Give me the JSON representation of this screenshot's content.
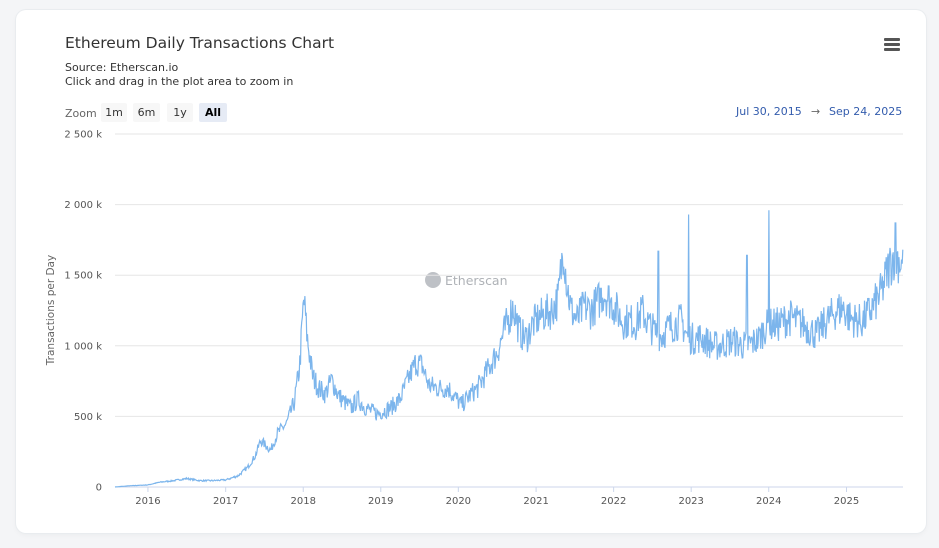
{
  "chart_data": {
    "type": "line",
    "title": "Ethereum Daily Transactions Chart",
    "subtitle": [
      "Source: Etherscan.io",
      "Click and drag in the plot area to zoom in"
    ],
    "ylabel": "Transactions per Day",
    "xlabel": "",
    "ylim": [
      0,
      2500000
    ],
    "xlim": [
      "2015-07-30",
      "2025-09-24"
    ],
    "y_ticks": [
      {
        "value": 0,
        "label": "0"
      },
      {
        "value": 500000,
        "label": "500 k"
      },
      {
        "value": 1000000,
        "label": "1 000 k"
      },
      {
        "value": 1500000,
        "label": "1 500 k"
      },
      {
        "value": 2000000,
        "label": "2 000 k"
      },
      {
        "value": 2500000,
        "label": "2 500 k"
      }
    ],
    "x_ticks": [
      {
        "value": "2016-01-01",
        "label": "2016"
      },
      {
        "value": "2017-01-01",
        "label": "2017"
      },
      {
        "value": "2018-01-01",
        "label": "2018"
      },
      {
        "value": "2019-01-01",
        "label": "2019"
      },
      {
        "value": "2020-01-01",
        "label": "2020"
      },
      {
        "value": "2021-01-01",
        "label": "2021"
      },
      {
        "value": "2022-01-01",
        "label": "2022"
      },
      {
        "value": "2023-01-01",
        "label": "2023"
      },
      {
        "value": "2024-01-01",
        "label": "2024"
      },
      {
        "value": "2025-01-01",
        "label": "2025"
      }
    ],
    "grid": true,
    "legend": "none",
    "series": [
      {
        "color": "#7cb5ec",
        "points": [
          [
            "2015-07-30",
            0
          ],
          [
            "2015-10-01",
            8000
          ],
          [
            "2016-01-01",
            15000
          ],
          [
            "2016-03-01",
            35000
          ],
          [
            "2016-05-01",
            45000
          ],
          [
            "2016-07-01",
            60000
          ],
          [
            "2016-09-01",
            45000
          ],
          [
            "2016-11-01",
            45000
          ],
          [
            "2017-01-01",
            50000
          ],
          [
            "2017-03-01",
            80000
          ],
          [
            "2017-04-15",
            140000
          ],
          [
            "2017-05-20",
            220000
          ],
          [
            "2017-06-15",
            330000
          ],
          [
            "2017-08-01",
            260000
          ],
          [
            "2017-09-01",
            380000
          ],
          [
            "2017-10-15",
            450000
          ],
          [
            "2017-11-20",
            600000
          ],
          [
            "2017-12-15",
            850000
          ],
          [
            "2018-01-04",
            1340000
          ],
          [
            "2018-01-20",
            1050000
          ],
          [
            "2018-02-15",
            780000
          ],
          [
            "2018-03-15",
            700000
          ],
          [
            "2018-04-15",
            660000
          ],
          [
            "2018-05-15",
            760000
          ],
          [
            "2018-06-15",
            650000
          ],
          [
            "2018-07-15",
            600000
          ],
          [
            "2018-08-15",
            560000
          ],
          [
            "2018-09-15",
            620000
          ],
          [
            "2018-10-15",
            570000
          ],
          [
            "2018-11-15",
            540000
          ],
          [
            "2018-12-15",
            520000
          ],
          [
            "2019-01-15",
            540000
          ],
          [
            "2019-02-15",
            560000
          ],
          [
            "2019-04-01",
            620000
          ],
          [
            "2019-05-15",
            780000
          ],
          [
            "2019-06-15",
            880000
          ],
          [
            "2019-07-15",
            860000
          ],
          [
            "2019-08-15",
            720000
          ],
          [
            "2019-10-01",
            700000
          ],
          [
            "2019-11-15",
            700000
          ],
          [
            "2019-12-15",
            640000
          ],
          [
            "2020-01-15",
            580000
          ],
          [
            "2020-03-01",
            660000
          ],
          [
            "2020-04-01",
            700000
          ],
          [
            "2020-05-15",
            820000
          ],
          [
            "2020-07-01",
            950000
          ],
          [
            "2020-08-15",
            1150000
          ],
          [
            "2020-09-15",
            1280000
          ],
          [
            "2020-10-15",
            1100000
          ],
          [
            "2020-11-15",
            1050000
          ],
          [
            "2020-12-15",
            1150000
          ],
          [
            "2021-01-15",
            1200000
          ],
          [
            "2021-02-15",
            1230000
          ],
          [
            "2021-03-15",
            1250000
          ],
          [
            "2021-04-15",
            1330000
          ],
          [
            "2021-05-10",
            1720000
          ],
          [
            "2021-05-25",
            1450000
          ],
          [
            "2021-06-15",
            1250000
          ],
          [
            "2021-07-15",
            1180000
          ],
          [
            "2021-08-15",
            1280000
          ],
          [
            "2021-09-15",
            1250000
          ],
          [
            "2021-10-15",
            1300000
          ],
          [
            "2021-11-15",
            1380000
          ],
          [
            "2021-12-15",
            1320000
          ],
          [
            "2022-01-15",
            1250000
          ],
          [
            "2022-02-15",
            1170000
          ],
          [
            "2022-03-15",
            1180000
          ],
          [
            "2022-04-15",
            1160000
          ],
          [
            "2022-05-15",
            1250000
          ],
          [
            "2022-06-15",
            1150000
          ],
          [
            "2022-07-15",
            1100000
          ],
          [
            "2022-08-15",
            1070000
          ],
          [
            "2022-09-15",
            1130000
          ],
          [
            "2022-10-15",
            1150000
          ],
          [
            "2022-11-15",
            1180000
          ],
          [
            "2022-12-15",
            1060000
          ],
          [
            "2023-01-15",
            1050000
          ],
          [
            "2023-02-15",
            1060000
          ],
          [
            "2023-03-15",
            1030000
          ],
          [
            "2023-04-15",
            1000000
          ],
          [
            "2023-05-15",
            1000000
          ],
          [
            "2023-06-15",
            1020000
          ],
          [
            "2023-07-15",
            1040000
          ],
          [
            "2023-08-15",
            1010000
          ],
          [
            "2023-09-15",
            1000000
          ],
          [
            "2023-10-15",
            1020000
          ],
          [
            "2023-11-15",
            1050000
          ],
          [
            "2023-12-15",
            1130000
          ],
          [
            "2024-01-15",
            1150000
          ],
          [
            "2024-02-15",
            1150000
          ],
          [
            "2024-03-15",
            1180000
          ],
          [
            "2024-04-15",
            1200000
          ],
          [
            "2024-05-15",
            1170000
          ],
          [
            "2024-06-15",
            1150000
          ],
          [
            "2024-07-15",
            1110000
          ],
          [
            "2024-08-15",
            1080000
          ],
          [
            "2024-09-15",
            1150000
          ],
          [
            "2024-10-15",
            1200000
          ],
          [
            "2024-11-15",
            1250000
          ],
          [
            "2024-12-15",
            1270000
          ],
          [
            "2025-01-15",
            1200000
          ],
          [
            "2025-02-15",
            1180000
          ],
          [
            "2025-03-15",
            1170000
          ],
          [
            "2025-04-15",
            1230000
          ],
          [
            "2025-05-15",
            1300000
          ],
          [
            "2025-06-15",
            1380000
          ],
          [
            "2025-07-15",
            1540000
          ],
          [
            "2025-08-15",
            1650000
          ],
          [
            "2025-09-24",
            1570000
          ]
        ],
        "spikes": [
          [
            "2022-07-30",
            1670000
          ],
          [
            "2022-12-20",
            1930000
          ],
          [
            "2023-09-20",
            1640000
          ],
          [
            "2024-01-02",
            1960000
          ],
          [
            "2025-08-20",
            1870000
          ]
        ]
      }
    ]
  },
  "ui": {
    "menu_icon": "hamburger-menu-icon",
    "zoom_label": "Zoom",
    "zoom_buttons": [
      "1m",
      "6m",
      "1y",
      "All"
    ],
    "zoom_selected": "All",
    "range_from": "Jul 30, 2015",
    "range_arrow": "→",
    "range_to": "Sep 24, 2025",
    "watermark": "Etherscan"
  }
}
